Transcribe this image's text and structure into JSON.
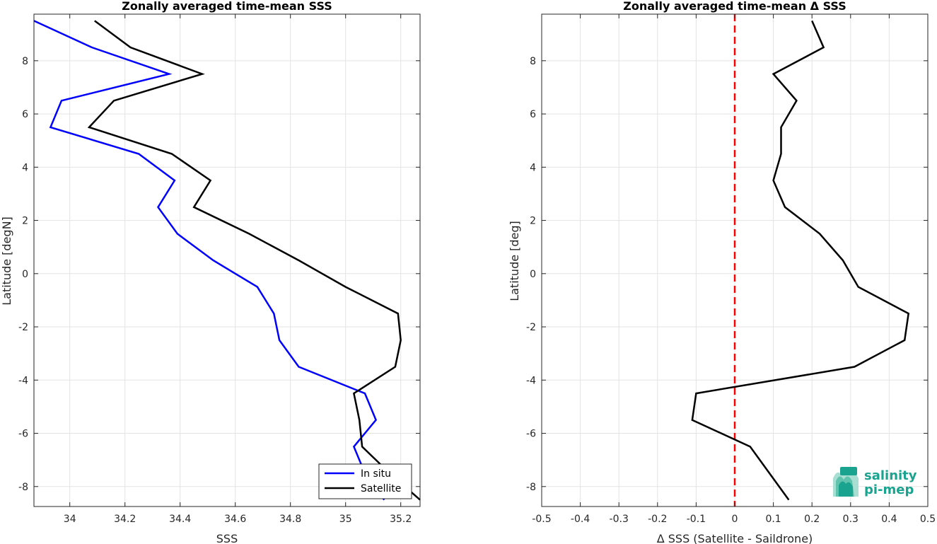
{
  "chart_data": [
    {
      "type": "line",
      "title": "Zonally averaged time-mean SSS",
      "xlabel": "SSS",
      "ylabel": "Latitude [degN]",
      "xlim": [
        33.87,
        35.27
      ],
      "ylim": [
        -8.75,
        9.75
      ],
      "xticks": [
        "34",
        "34.2",
        "34.4",
        "34.6",
        "34.8",
        "35",
        "35.2"
      ],
      "yticks": [
        "-8",
        "-6",
        "-4",
        "-2",
        "0",
        "2",
        "4",
        "6",
        "8"
      ],
      "grid": true,
      "legend_position": "bottom-right",
      "y": [
        9.5,
        8.5,
        7.5,
        6.5,
        5.5,
        4.5,
        3.5,
        2.5,
        1.5,
        0.5,
        -0.5,
        -1.5,
        -2.5,
        -3.5,
        -4.5,
        -5.5,
        -6.5,
        -7.5,
        -8.5
      ],
      "series": [
        {
          "name": "In situ",
          "color": "#0000ff",
          "values": [
            33.87,
            34.08,
            34.36,
            33.97,
            33.93,
            34.25,
            34.38,
            34.32,
            34.39,
            34.52,
            34.68,
            34.74,
            34.76,
            34.83,
            35.07,
            35.11,
            35.03,
            35.07,
            35.14
          ]
        },
        {
          "name": "Satellite",
          "color": "#000000",
          "values": [
            34.09,
            34.22,
            34.48,
            34.16,
            34.07,
            34.37,
            34.51,
            34.45,
            34.65,
            34.83,
            35.0,
            35.19,
            35.2,
            35.18,
            35.03,
            35.05,
            35.06,
            35.16,
            35.27
          ]
        }
      ]
    },
    {
      "type": "line",
      "title": "Zonally averaged time-mean Δ SSS",
      "xlabel": "Δ SSS (Satellite - Saildrone)",
      "ylabel": "Latitude [deg]",
      "xlim": [
        -0.5,
        0.5
      ],
      "ylim": [
        -8.75,
        9.75
      ],
      "xticks": [
        "-0.5",
        "-0.4",
        "-0.3",
        "-0.2",
        "-0.1",
        "0",
        "0.1",
        "0.2",
        "0.3",
        "0.4",
        "0.5"
      ],
      "yticks": [
        "-8",
        "-6",
        "-4",
        "-2",
        "0",
        "2",
        "4",
        "6",
        "8"
      ],
      "grid": true,
      "reference_line": {
        "x": 0,
        "color": "#ff0000",
        "style": "dashed"
      },
      "y": [
        9.5,
        8.5,
        7.5,
        6.5,
        5.5,
        4.5,
        3.5,
        2.5,
        1.5,
        0.5,
        -0.5,
        -1.5,
        -2.5,
        -3.5,
        -4.5,
        -5.5,
        -6.5,
        -7.5,
        -8.5
      ],
      "series": [
        {
          "color": "#000000",
          "values": [
            0.2,
            0.23,
            0.1,
            0.16,
            0.12,
            0.12,
            0.1,
            0.13,
            0.22,
            0.28,
            0.32,
            0.45,
            0.44,
            0.31,
            -0.1,
            -0.11,
            0.04,
            0.09,
            0.14
          ]
        }
      ]
    }
  ],
  "logo": {
    "line1": "salinity",
    "line2": "pi-mep",
    "color": "#1aa38f"
  }
}
